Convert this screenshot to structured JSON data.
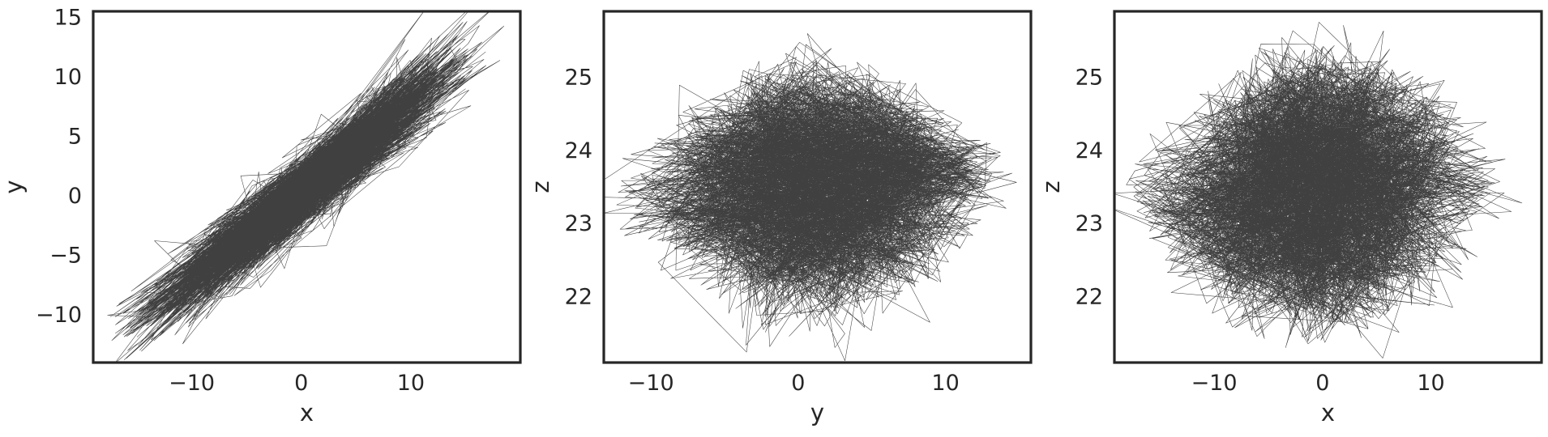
{
  "chart_data": [
    {
      "type": "line",
      "xlabel": "x",
      "ylabel": "y",
      "xlim": [
        -19,
        20
      ],
      "ylim": [
        -14,
        15.5
      ],
      "xticks": [
        -10,
        0,
        10
      ],
      "xtick_labels": [
        "−10",
        "0",
        "10"
      ],
      "yticks": [
        -10,
        -5,
        0,
        5,
        10,
        15
      ],
      "ytick_labels": [
        "−10",
        "−5",
        "0",
        "5",
        "10",
        "15"
      ],
      "grid": false,
      "series_color": "#000000",
      "series": [
        {
          "x": [
            -17.4,
            -13.5,
            -9.8,
            -6.2,
            -2.5,
            0.3,
            3.2,
            6.8,
            10.2,
            13.5,
            17.4
          ],
          "y": [
            -12.5,
            -10.3,
            -7.4,
            -4.2,
            -1.3,
            0.4,
            2.7,
            5.3,
            8.0,
            10.9,
            14.0
          ]
        }
      ]
    },
    {
      "type": "line",
      "xlabel": "y",
      "ylabel": "z",
      "xlim": [
        -13.2,
        15.8
      ],
      "ylim": [
        21.1,
        25.9
      ],
      "xticks": [
        -10,
        0,
        10
      ],
      "xtick_labels": [
        "−10",
        "0",
        "10"
      ],
      "yticks": [
        22,
        23,
        24,
        25
      ],
      "ytick_labels": [
        "22",
        "23",
        "24",
        "25"
      ],
      "grid": false,
      "series_color": "#000000",
      "series": [
        {
          "x": [
            -12.5,
            -8.5,
            -4.0,
            0.0,
            4.0,
            8.5,
            12.5,
            14.5,
            9.0,
            3.0,
            -3.0,
            -9.0
          ],
          "y": [
            23.3,
            24.3,
            24.9,
            25.3,
            25.0,
            24.5,
            23.9,
            23.5,
            22.3,
            21.6,
            21.7,
            22.5
          ]
        }
      ]
    },
    {
      "type": "line",
      "xlabel": "x",
      "ylabel": "z",
      "xlim": [
        -19.2,
        20.2
      ],
      "ylim": [
        21.1,
        25.9
      ],
      "xticks": [
        -10,
        0,
        10
      ],
      "xtick_labels": [
        "−10",
        "0",
        "10"
      ],
      "yticks": [
        22,
        23,
        24,
        25
      ],
      "ytick_labels": [
        "22",
        "23",
        "24",
        "25"
      ],
      "grid": false,
      "series_color": "#000000",
      "series": [
        {
          "x": [
            -18.0,
            -12.0,
            -6.0,
            0.0,
            6.0,
            12.0,
            17.5,
            12.0,
            5.0,
            -2.0,
            -9.0,
            -15.0
          ],
          "y": [
            23.5,
            24.5,
            25.2,
            25.4,
            25.2,
            24.4,
            23.6,
            22.3,
            21.7,
            21.5,
            21.8,
            22.6
          ]
        }
      ]
    }
  ]
}
